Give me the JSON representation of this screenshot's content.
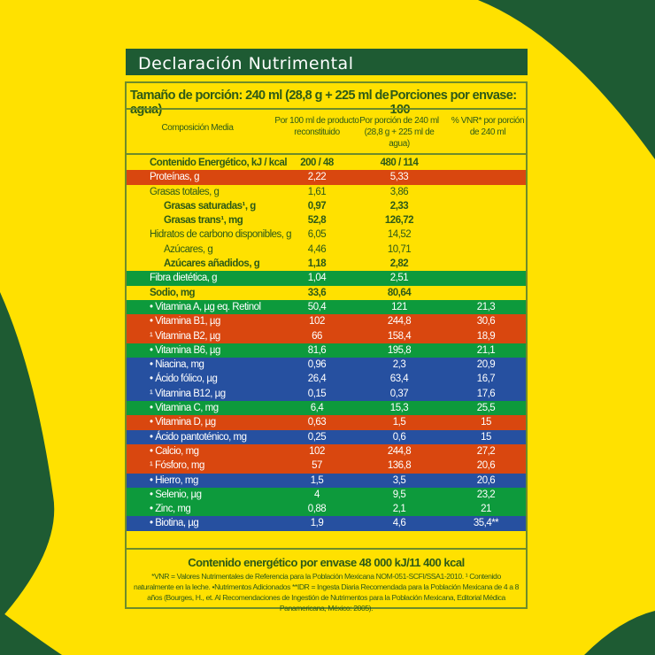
{
  "title": "Declaración Nutrimental",
  "serving_size": "Tamaño de porción: 240 ml (28,8 g + 225 ml de agua)",
  "servings_per_container": "Porciones por envase: 100",
  "columns": {
    "composition": "Composición Media",
    "per100": "Por 100 ml de producto reconstituido",
    "per_serving": "Por porción de 240 ml (28,8 g + 225 ml de agua)",
    "vnr": "% VNR* por porción de 240 ml"
  },
  "colors": {
    "yellow": "#ffe100",
    "green": "#0d9a3c",
    "orange": "#d9470f",
    "blue": "#2650a0",
    "dark_green": "#1e5b33"
  },
  "rows": [
    {
      "name": "Contenido Energético, kJ / kcal",
      "per100": "200 / 48",
      "per_serving": "480 / 114",
      "vnr": "",
      "style": "bold",
      "bg": "yellow"
    },
    {
      "name": "Proteínas, g",
      "per100": "2,22",
      "per_serving": "5,33",
      "vnr": "",
      "bg": "orange"
    },
    {
      "name": "Grasas totales, g",
      "per100": "1,61",
      "per_serving": "3,86",
      "vnr": "",
      "bg": "yellow"
    },
    {
      "name": "Grasas saturadas¹, g",
      "per100": "0,97",
      "per_serving": "2,33",
      "vnr": "",
      "style": "bold",
      "indent": true,
      "bg": "yellow"
    },
    {
      "name": "Grasas trans¹, mg",
      "per100": "52,8",
      "per_serving": "126,72",
      "vnr": "",
      "style": "bold",
      "indent": true,
      "bg": "yellow"
    },
    {
      "name": "Hidratos de carbono disponibles, g",
      "per100": "6,05",
      "per_serving": "14,52",
      "vnr": "",
      "bg": "yellow"
    },
    {
      "name": "Azúcares, g",
      "per100": "4,46",
      "per_serving": "10,71",
      "vnr": "",
      "indent": true,
      "bg": "yellow"
    },
    {
      "name": "Azúcares añadidos, g",
      "per100": "1,18",
      "per_serving": "2,82",
      "vnr": "",
      "style": "bold",
      "indent": true,
      "bg": "yellow"
    },
    {
      "name": "Fibra dietética, g",
      "per100": "1,04",
      "per_serving": "2,51",
      "vnr": "",
      "bg": "green"
    },
    {
      "name": "Sodio, mg",
      "per100": "33,6",
      "per_serving": "80,64",
      "vnr": "",
      "style": "bold",
      "bg": "yellow"
    },
    {
      "name": "• Vitamina A, µg eq. Retinol",
      "per100": "50,4",
      "per_serving": "121",
      "vnr": "21,3",
      "bg": "green"
    },
    {
      "name": "• Vitamina B1, µg",
      "per100": "102",
      "per_serving": "244,8",
      "vnr": "30,6",
      "bg": "orange"
    },
    {
      "name": "¹ Vitamina B2, µg",
      "per100": "66",
      "per_serving": "158,4",
      "vnr": "18,9",
      "bg": "orange"
    },
    {
      "name": "• Vitamina B6, µg",
      "per100": "81,6",
      "per_serving": "195,8",
      "vnr": "21,1",
      "bg": "green"
    },
    {
      "name": "• Niacina, mg",
      "per100": "0,96",
      "per_serving": "2,3",
      "vnr": "20,9",
      "bg": "blue"
    },
    {
      "name": "• Ácido fólico, µg",
      "per100": "26,4",
      "per_serving": "63,4",
      "vnr": "16,7",
      "bg": "blue"
    },
    {
      "name": "¹ Vitamina B12, µg",
      "per100": "0,15",
      "per_serving": "0,37",
      "vnr": "17,6",
      "bg": "blue"
    },
    {
      "name": "• Vitamina C, mg",
      "per100": "6,4",
      "per_serving": "15,3",
      "vnr": "25,5",
      "bg": "green"
    },
    {
      "name": "• Vitamina D, µg",
      "per100": "0,63",
      "per_serving": "1,5",
      "vnr": "15",
      "bg": "orange"
    },
    {
      "name": "• Ácido pantoténico, mg",
      "per100": "0,25",
      "per_serving": "0,6",
      "vnr": "15",
      "bg": "blue"
    },
    {
      "name": "• Calcio, mg",
      "per100": "102",
      "per_serving": "244,8",
      "vnr": "27,2",
      "bg": "orange"
    },
    {
      "name": "¹ Fósforo, mg",
      "per100": "57",
      "per_serving": "136,8",
      "vnr": "20,6",
      "bg": "orange"
    },
    {
      "name": "• Hierro, mg",
      "per100": "1,5",
      "per_serving": "3,5",
      "vnr": "20,6",
      "bg": "blue"
    },
    {
      "name": "• Selenio, µg",
      "per100": "4",
      "per_serving": "9,5",
      "vnr": "23,2",
      "bg": "green"
    },
    {
      "name": "• Zinc, mg",
      "per100": "0,88",
      "per_serving": "2,1",
      "vnr": "21",
      "bg": "green"
    },
    {
      "name": "• Biotina, µg",
      "per100": "1,9",
      "per_serving": "4,6",
      "vnr": "35,4**",
      "bg": "blue"
    }
  ],
  "total_energy": "Contenido energético por envase 48 000 kJ/11 400 kcal",
  "notes": "*VNR = Valores Nutrimentales de Referencia para la Población Mexicana NOM-051-SCFI/SSA1-2010. ¹ Contenido naturalmente en la leche. •Nutrimentos Adicionados   **IDR = Ingesta Diaria Recomendada para la Población Mexicana de 4 a 8 años (Bourges, H., et. Al Recomendaciones de Ingestión de Nutrimentos para la Población Mexicana, Editorial Médica Panamericana, México: 2005)."
}
